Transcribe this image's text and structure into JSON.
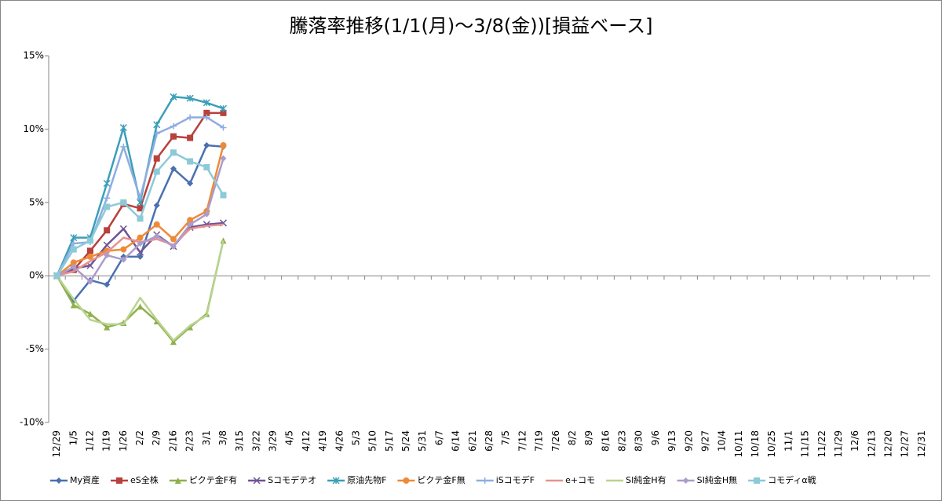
{
  "chart_data": {
    "type": "line",
    "title": "騰落率推移(1/1(月)～3/8(金))[損益ベース]",
    "categories": [
      "12/29",
      "1/5",
      "1/12",
      "1/19",
      "1/26",
      "2/2",
      "2/9",
      "2/16",
      "2/23",
      "3/1",
      "3/8",
      "3/15",
      "3/22",
      "3/29",
      "4/5",
      "4/12",
      "4/19",
      "4/26",
      "5/3",
      "5/10",
      "5/17",
      "5/24",
      "5/31",
      "6/7",
      "6/14",
      "6/21",
      "6/28",
      "7/5",
      "7/12",
      "7/19",
      "7/26",
      "8/2",
      "8/9",
      "8/16",
      "8/23",
      "8/30",
      "9/6",
      "9/13",
      "9/20",
      "9/27",
      "10/4",
      "10/11",
      "10/18",
      "10/25",
      "11/1",
      "11/15",
      "11/22",
      "11/29",
      "12/6",
      "12/13",
      "12/20",
      "12/27",
      "12/31"
    ],
    "ylim": [
      -10,
      15
    ],
    "yticks": [
      {
        "value": -10,
        "label": "-10%"
      },
      {
        "value": -5,
        "label": "-5%"
      },
      {
        "value": 0,
        "label": "0%"
      },
      {
        "value": 5,
        "label": "5%"
      },
      {
        "value": 10,
        "label": "10%"
      },
      {
        "value": 15,
        "label": "15%"
      }
    ],
    "grid": false,
    "legend": "bottom",
    "series": [
      {
        "name": "My資産",
        "color": "#4a70b0",
        "marker": "diamond",
        "values": [
          0,
          -1.7,
          -0.3,
          -0.6,
          1.3,
          1.3,
          4.8,
          7.3,
          6.3,
          8.9,
          8.8,
          null,
          null,
          null,
          null,
          null,
          null,
          null,
          null,
          null,
          null,
          null,
          null,
          null,
          null,
          null,
          null,
          null,
          null,
          null,
          null,
          null,
          null,
          null,
          null,
          null,
          null,
          null,
          null,
          null,
          null,
          null,
          null,
          null,
          null,
          null,
          null,
          null,
          null,
          null,
          null,
          null,
          null
        ]
      },
      {
        "name": "eS全株",
        "color": "#b8403d",
        "marker": "square",
        "values": [
          0,
          0.4,
          1.7,
          3.1,
          4.9,
          4.6,
          8.0,
          9.5,
          9.4,
          11.1,
          11.1,
          null,
          null,
          null,
          null,
          null,
          null,
          null,
          null,
          null,
          null,
          null,
          null,
          null,
          null,
          null,
          null,
          null,
          null,
          null,
          null,
          null,
          null,
          null,
          null,
          null,
          null,
          null,
          null,
          null,
          null,
          null,
          null,
          null,
          null,
          null,
          null,
          null,
          null,
          null,
          null,
          null,
          null
        ]
      },
      {
        "name": "ピクテ金F有",
        "color": "#8fb04c",
        "marker": "triangle",
        "values": [
          0,
          -2.0,
          -2.6,
          -3.5,
          -3.2,
          -2.1,
          -3.1,
          -4.5,
          -3.5,
          -2.6,
          2.4,
          null,
          null,
          null,
          null,
          null,
          null,
          null,
          null,
          null,
          null,
          null,
          null,
          null,
          null,
          null,
          null,
          null,
          null,
          null,
          null,
          null,
          null,
          null,
          null,
          null,
          null,
          null,
          null,
          null,
          null,
          null,
          null,
          null,
          null,
          null,
          null,
          null,
          null,
          null,
          null,
          null,
          null
        ]
      },
      {
        "name": "Sコモデテオ",
        "color": "#6f5494",
        "marker": "x",
        "values": [
          0,
          0.5,
          0.7,
          2.1,
          3.2,
          1.6,
          2.8,
          2.0,
          3.3,
          3.5,
          3.6,
          null,
          null,
          null,
          null,
          null,
          null,
          null,
          null,
          null,
          null,
          null,
          null,
          null,
          null,
          null,
          null,
          null,
          null,
          null,
          null,
          null,
          null,
          null,
          null,
          null,
          null,
          null,
          null,
          null,
          null,
          null,
          null,
          null,
          null,
          null,
          null,
          null,
          null,
          null,
          null,
          null,
          null
        ]
      },
      {
        "name": "原油先物F",
        "color": "#3b9fb8",
        "marker": "star",
        "values": [
          0,
          2.6,
          2.6,
          6.3,
          10.1,
          5.0,
          10.3,
          12.2,
          12.1,
          11.8,
          11.4,
          null,
          null,
          null,
          null,
          null,
          null,
          null,
          null,
          null,
          null,
          null,
          null,
          null,
          null,
          null,
          null,
          null,
          null,
          null,
          null,
          null,
          null,
          null,
          null,
          null,
          null,
          null,
          null,
          null,
          null,
          null,
          null,
          null,
          null,
          null,
          null,
          null,
          null,
          null,
          null,
          null,
          null
        ]
      },
      {
        "name": "ピクテ金F無",
        "color": "#ee8a37",
        "marker": "circle",
        "values": [
          0,
          0.9,
          1.3,
          1.7,
          1.8,
          2.6,
          3.5,
          2.5,
          3.8,
          4.4,
          8.9,
          null,
          null,
          null,
          null,
          null,
          null,
          null,
          null,
          null,
          null,
          null,
          null,
          null,
          null,
          null,
          null,
          null,
          null,
          null,
          null,
          null,
          null,
          null,
          null,
          null,
          null,
          null,
          null,
          null,
          null,
          null,
          null,
          null,
          null,
          null,
          null,
          null,
          null,
          null,
          null,
          null,
          null
        ]
      },
      {
        "name": "iSコモデF",
        "color": "#8eaee0",
        "marker": "plus",
        "values": [
          0,
          2.2,
          2.3,
          5.3,
          8.8,
          5.3,
          9.7,
          10.2,
          10.8,
          10.8,
          10.1,
          null,
          null,
          null,
          null,
          null,
          null,
          null,
          null,
          null,
          null,
          null,
          null,
          null,
          null,
          null,
          null,
          null,
          null,
          null,
          null,
          null,
          null,
          null,
          null,
          null,
          null,
          null,
          null,
          null,
          null,
          null,
          null,
          null,
          null,
          null,
          null,
          null,
          null,
          null,
          null,
          null,
          null
        ]
      },
      {
        "name": "e+コモ",
        "color": "#e8918e",
        "marker": "none",
        "values": [
          0,
          0.3,
          1.0,
          1.6,
          2.6,
          2.3,
          2.5,
          2.1,
          3.2,
          3.4,
          3.5,
          null,
          null,
          null,
          null,
          null,
          null,
          null,
          null,
          null,
          null,
          null,
          null,
          null,
          null,
          null,
          null,
          null,
          null,
          null,
          null,
          null,
          null,
          null,
          null,
          null,
          null,
          null,
          null,
          null,
          null,
          null,
          null,
          null,
          null,
          null,
          null,
          null,
          null,
          null,
          null,
          null,
          null
        ]
      },
      {
        "name": "SI純金H有",
        "color": "#b9d390",
        "marker": "none",
        "values": [
          0,
          -1.6,
          -3.0,
          -3.3,
          -3.3,
          -1.5,
          -3.0,
          -4.4,
          -3.4,
          -2.7,
          2.4,
          null,
          null,
          null,
          null,
          null,
          null,
          null,
          null,
          null,
          null,
          null,
          null,
          null,
          null,
          null,
          null,
          null,
          null,
          null,
          null,
          null,
          null,
          null,
          null,
          null,
          null,
          null,
          null,
          null,
          null,
          null,
          null,
          null,
          null,
          null,
          null,
          null,
          null,
          null,
          null,
          null,
          null
        ]
      },
      {
        "name": "SI純金H無",
        "color": "#ab9ccc",
        "marker": "diamond",
        "values": [
          0,
          0.6,
          -0.4,
          1.4,
          1.1,
          2.2,
          2.7,
          2.0,
          3.5,
          4.2,
          8.0,
          null,
          null,
          null,
          null,
          null,
          null,
          null,
          null,
          null,
          null,
          null,
          null,
          null,
          null,
          null,
          null,
          null,
          null,
          null,
          null,
          null,
          null,
          null,
          null,
          null,
          null,
          null,
          null,
          null,
          null,
          null,
          null,
          null,
          null,
          null,
          null,
          null,
          null,
          null,
          null,
          null,
          null
        ]
      },
      {
        "name": "コモディα戦",
        "color": "#8ccad8",
        "marker": "square",
        "values": [
          0,
          1.8,
          2.4,
          4.7,
          5.0,
          3.9,
          7.1,
          8.4,
          7.8,
          7.4,
          5.5,
          null,
          null,
          null,
          null,
          null,
          null,
          null,
          null,
          null,
          null,
          null,
          null,
          null,
          null,
          null,
          null,
          null,
          null,
          null,
          null,
          null,
          null,
          null,
          null,
          null,
          null,
          null,
          null,
          null,
          null,
          null,
          null,
          null,
          null,
          null,
          null,
          null,
          null,
          null,
          null,
          null,
          null
        ]
      }
    ]
  }
}
